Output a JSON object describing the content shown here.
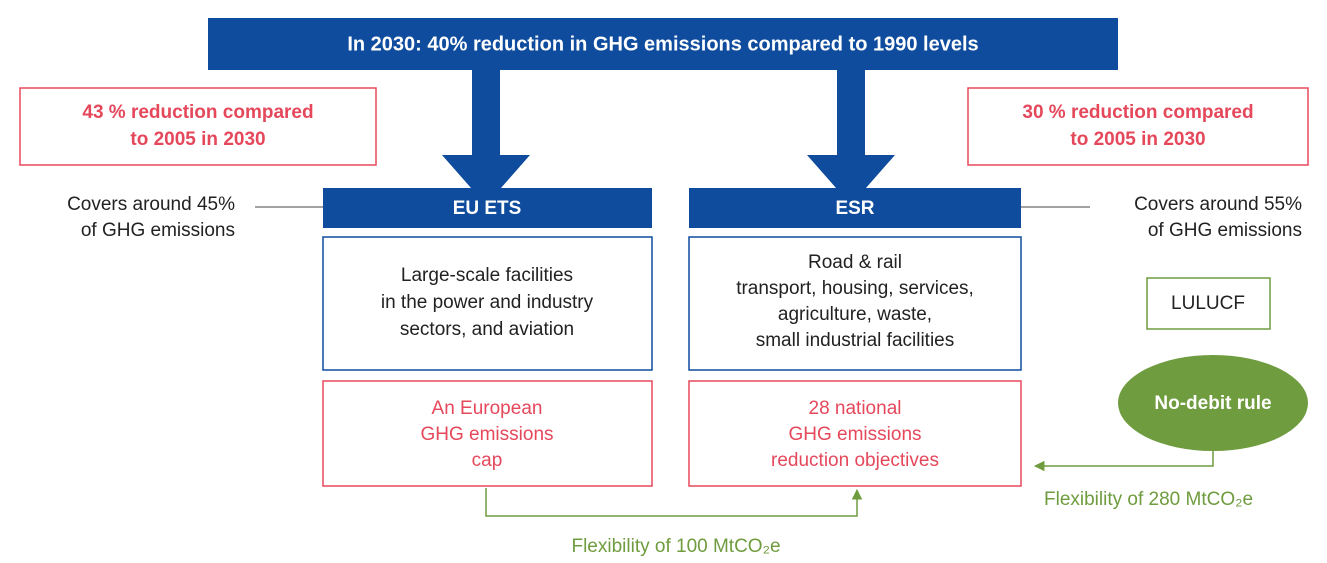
{
  "banner": "In 2030: 40% reduction in GHG emissions compared to 1990 levels",
  "left_target": [
    "43 % reduction compared",
    "to 2005 in 2030"
  ],
  "right_target": [
    "30 % reduction compared",
    "to 2005 in 2030"
  ],
  "left_coverage": [
    "Covers around 45%",
    "of GHG emissions"
  ],
  "right_coverage": [
    "Covers around 55%",
    "of GHG emissions"
  ],
  "ets": {
    "title": "EU ETS",
    "scope": [
      "Large-scale facilities",
      "in the power and industry",
      "sectors, and aviation"
    ],
    "cap": [
      "An European",
      "GHG emissions",
      "cap"
    ]
  },
  "esr": {
    "title": "ESR",
    "scope": [
      "Road & rail",
      "transport, housing, services,",
      "agriculture, waste,",
      "small industrial facilities"
    ],
    "cap": [
      "28 national",
      "GHG emissions",
      "reduction objectives"
    ]
  },
  "lulucf": "LULUCF",
  "no_debit": "No-debit rule",
  "flex_lulucf": "Flexibility of 280 MtCO₂e",
  "flex_ets": "Flexibility of 100 MtCO₂e"
}
